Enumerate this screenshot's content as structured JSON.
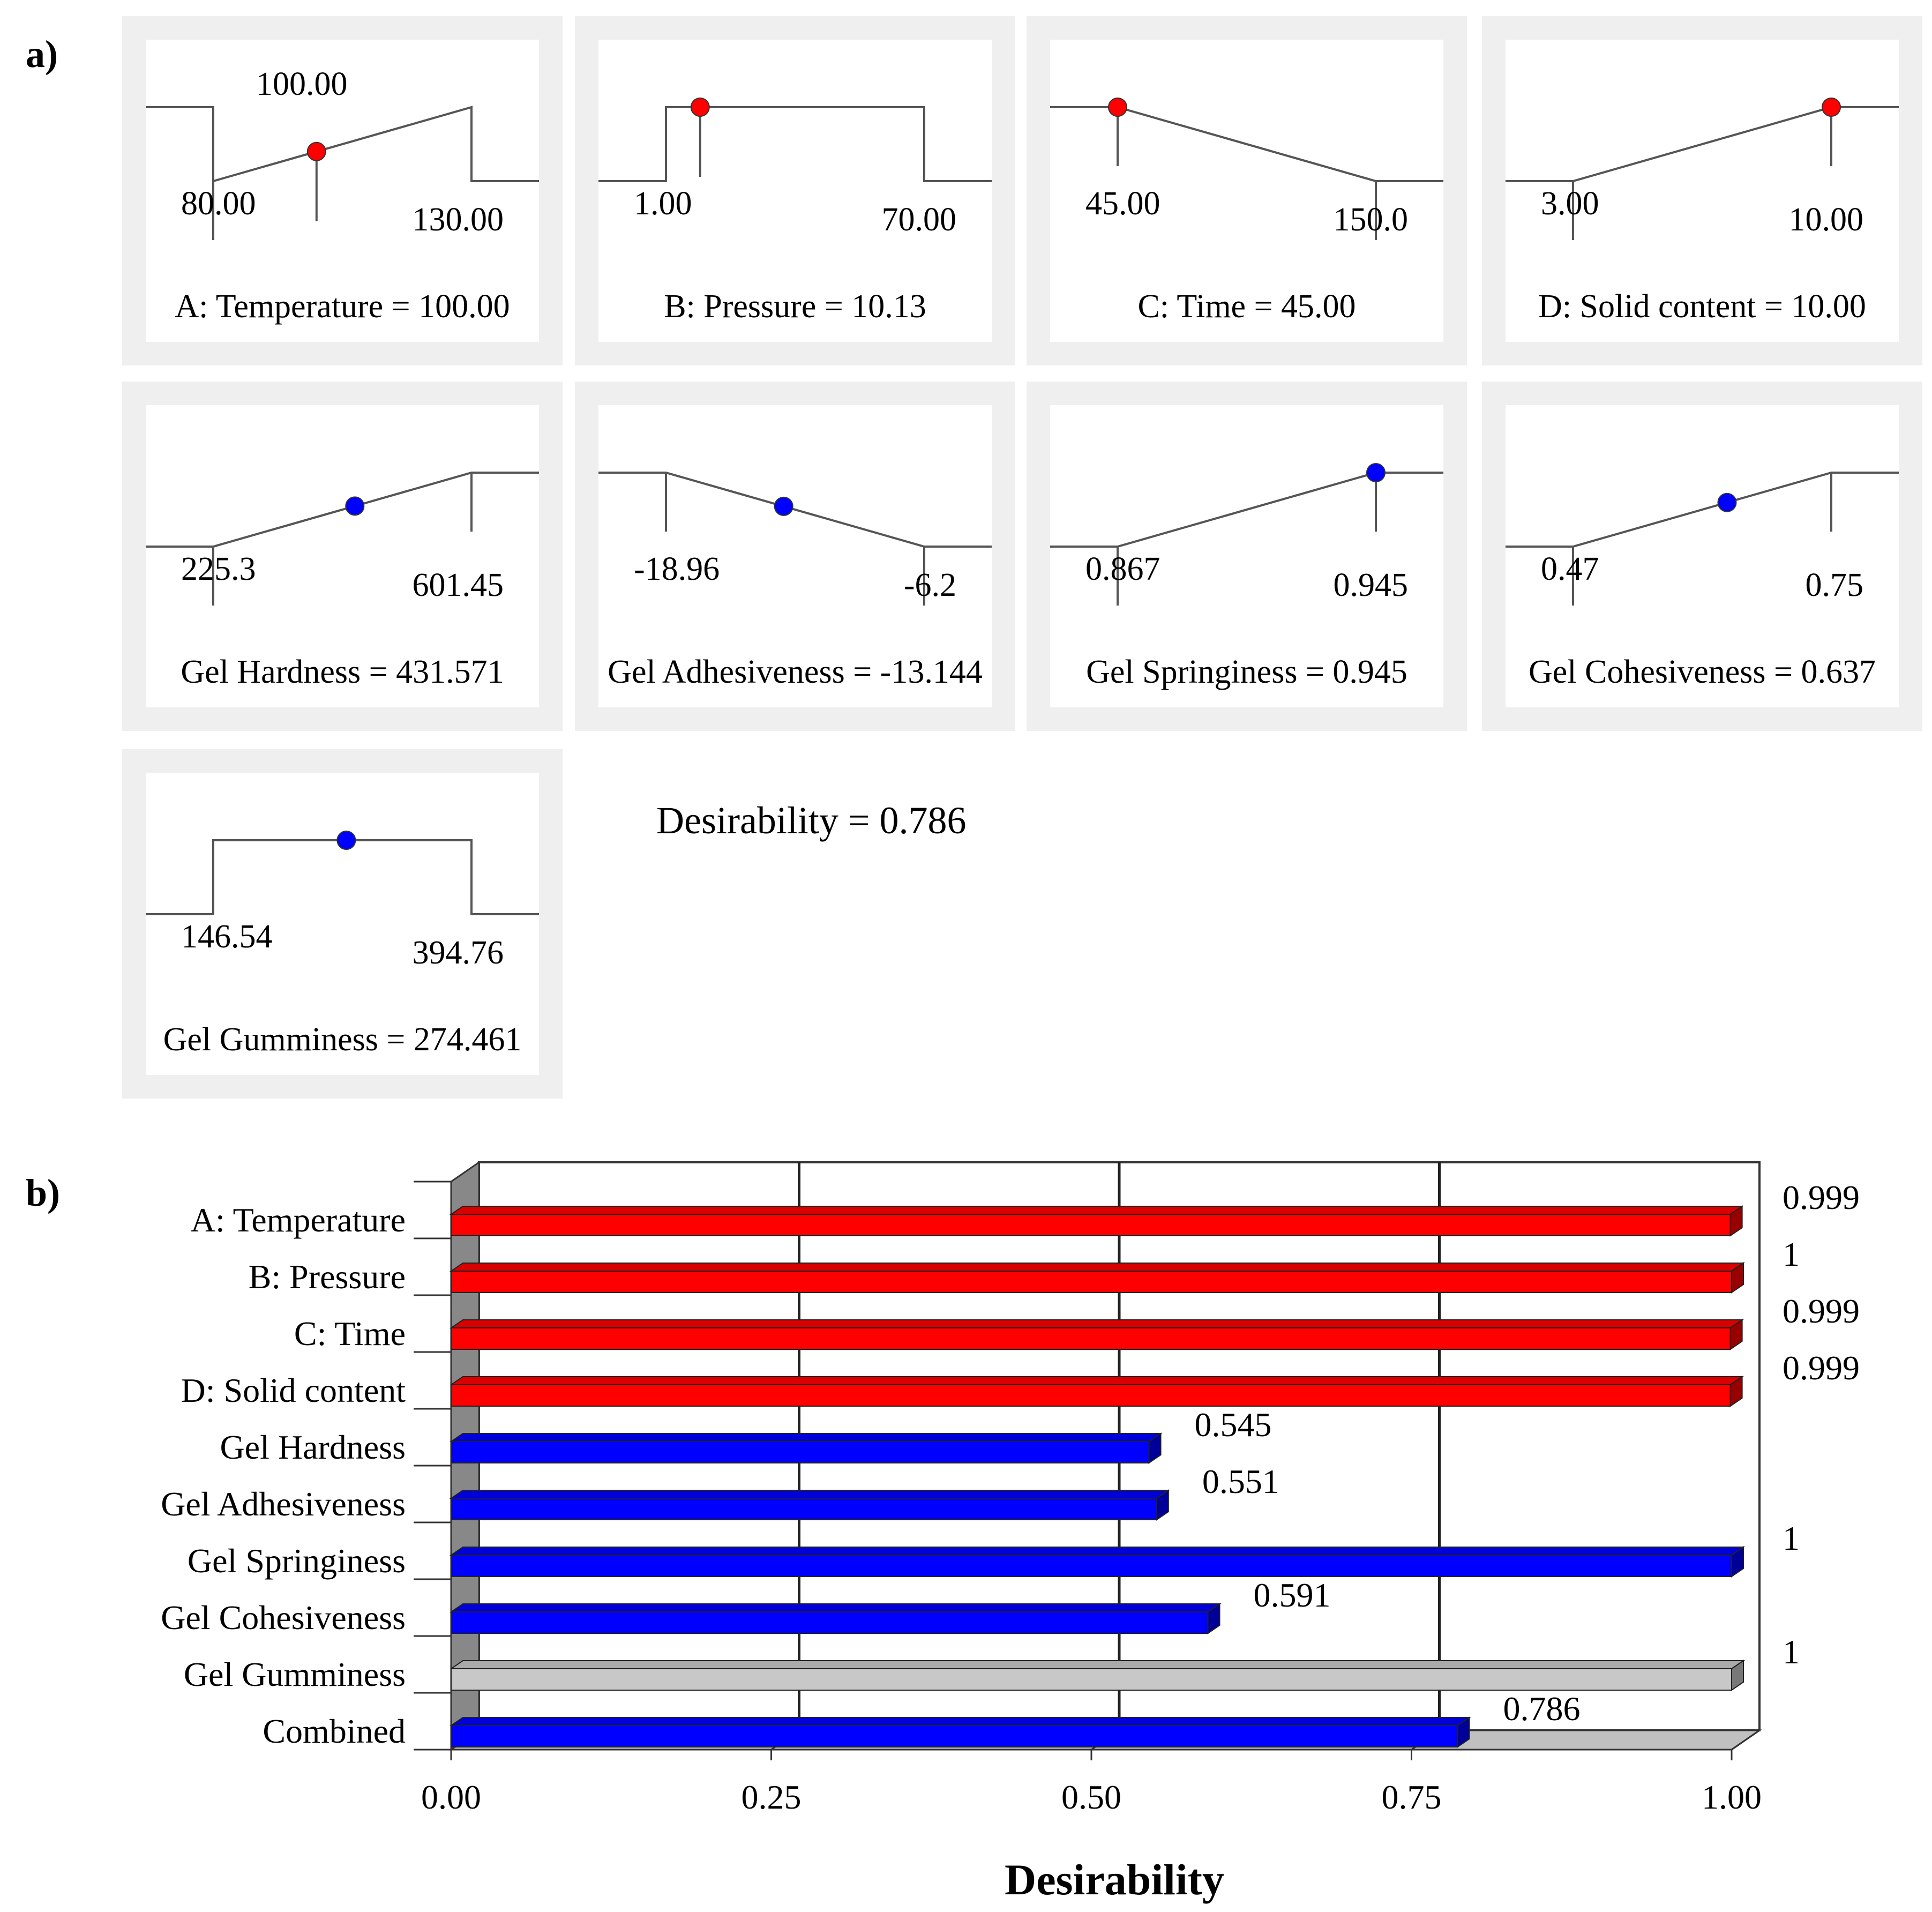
{
  "panel_a": {
    "label": "a)",
    "desirability": "Desirability  = 0.786",
    "factors": [
      {
        "ramp": [
          [
            80,
            0
          ],
          [
            130,
            1
          ]
        ],
        "ylevel": [
          1,
          0
        ],
        "low_label": "80.00",
        "high_label": "130.00",
        "extra_label": "100.00",
        "value": 100,
        "caption": "A: Temperature  = 100.00",
        "dot_color": "#ff0000"
      },
      {
        "ramp": [
          [
            1,
            1
          ],
          [
            70,
            1
          ]
        ],
        "ylevel": [
          0,
          0
        ],
        "low_label": "1.00",
        "high_label": "70.00",
        "value": 10.13,
        "caption": "B: Pressure = 10.13",
        "dot_color": "#ff0000"
      },
      {
        "ramp": [
          [
            45,
            1
          ],
          [
            150,
            0
          ]
        ],
        "ylevel": [
          1,
          0
        ],
        "low_label": "45.00",
        "high_label": "150.0",
        "value": 45,
        "caption": "C: Time  = 45.00",
        "dot_color": "#ff0000"
      },
      {
        "ramp": [
          [
            3,
            0
          ],
          [
            10,
            1
          ]
        ],
        "ylevel": [
          0,
          1
        ],
        "low_label": "3.00",
        "high_label": "10.00",
        "value": 10,
        "caption": "D: Solid  content  = 10.00",
        "dot_color": "#ff0000"
      }
    ],
    "responses": [
      {
        "ramp": [
          [
            225.3,
            0
          ],
          [
            601.45,
            1
          ]
        ],
        "ylevel": [
          0,
          1
        ],
        "low_label": "225.3",
        "high_label": "601.45",
        "value": 431.571,
        "caption": "Gel Hardness  = 431.571",
        "dot_color": "#0000ff"
      },
      {
        "ramp": [
          [
            -18.96,
            1
          ],
          [
            -6.2,
            0
          ]
        ],
        "ylevel": [
          1,
          0
        ],
        "low_label": "-18.96",
        "high_label": "-6.2",
        "value": -13.144,
        "caption": "Gel Adhesiveness  = -13.144",
        "dot_color": "#0000ff"
      },
      {
        "ramp": [
          [
            0.867,
            0
          ],
          [
            0.945,
            1
          ]
        ],
        "ylevel": [
          0,
          1
        ],
        "low_label": "0.867",
        "high_label": "0.945",
        "value": 0.945,
        "caption": "Gel Springiness  = 0.945",
        "dot_color": "#0000ff"
      },
      {
        "ramp": [
          [
            0.47,
            0
          ],
          [
            0.75,
            1
          ]
        ],
        "ylevel": [
          0,
          1
        ],
        "low_label": "0.47",
        "high_label": "0.75",
        "value": 0.637,
        "caption": "Gel Cohesiveness  = 0.637",
        "dot_color": "#0000ff"
      },
      {
        "ramp": [
          [
            146.54,
            1
          ],
          [
            394.76,
            1
          ]
        ],
        "ylevel": [
          0,
          0
        ],
        "low_label": "146.54",
        "high_label": "394.76",
        "value": 274.461,
        "caption": "Gel Gumminess  = 274.461",
        "dot_color": "#0000ff"
      }
    ]
  },
  "chart_data": {
    "type": "bar",
    "orientation": "horizontal",
    "panel_label": "b)",
    "xlabel": "Desirability",
    "xlim": [
      0,
      1
    ],
    "xticks": [
      "0.00",
      "0.25",
      "0.50",
      "0.75",
      "1.00"
    ],
    "grid": true,
    "categories": [
      "A: Temperature",
      "B: Pressure",
      "C: Time",
      "D: Solid  content",
      "Gel Hardness",
      "Gel Adhesiveness",
      "Gel Springiness",
      "Gel Cohesiveness",
      "Gel Gumminess",
      "Combined"
    ],
    "values": [
      0.999,
      1,
      0.999,
      0.999,
      0.545,
      0.551,
      1,
      0.591,
      1,
      0.786
    ],
    "value_labels": [
      "0.999",
      "1",
      "0.999",
      "0.999",
      "0.545",
      "0.551",
      "1",
      "0.591",
      "1",
      "0.786"
    ],
    "colors": [
      "#ff0000",
      "#ff0000",
      "#ff0000",
      "#ff0000",
      "#0000ff",
      "#0000ff",
      "#0000ff",
      "#0000ff",
      "#c8c8c8",
      "#0000ff"
    ]
  }
}
